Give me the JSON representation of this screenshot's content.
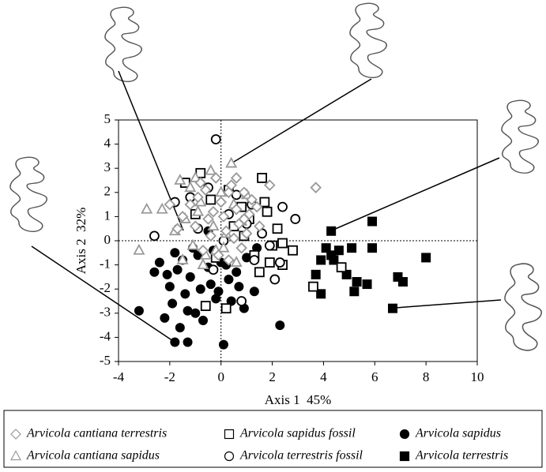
{
  "chart_data": {
    "type": "scatter",
    "x_label": "Axis 1  45%",
    "y_label": "Axis 2  32%",
    "xlim": [
      -4,
      10
    ],
    "xticks": [
      -4,
      -2,
      0,
      2,
      4,
      6,
      8,
      10
    ],
    "ylim": [
      -5,
      5
    ],
    "yticks": [
      -5,
      -4,
      -3,
      -2,
      -1,
      0,
      1,
      2,
      3,
      4,
      5
    ],
    "zero_lines": true,
    "grid": false,
    "series": [
      {
        "name": "Arvicola sapidus",
        "marker": "circle",
        "filled": true,
        "color": "#000000",
        "x": [
          -3.2,
          -1.8,
          -1.3,
          0.1,
          2.3,
          -2.2,
          -1.6,
          -1.0,
          -0.6,
          -0.2,
          0.4,
          0.9,
          1.3,
          -1.9,
          -1.4,
          -0.8,
          -0.4,
          0.3,
          0.7,
          -2.1,
          -1.7,
          -1.2,
          -0.5,
          0.0,
          0.6,
          -1.5,
          -0.9,
          -0.3,
          -2.4,
          -1.1,
          1.0,
          -0.7,
          0.2,
          -1.8,
          -2.0,
          -1.3,
          -0.1,
          -2.6,
          -0.5,
          1.4
        ],
        "y": [
          -2.9,
          -4.2,
          -4.2,
          -4.3,
          -3.5,
          -3.2,
          -3.6,
          -3.0,
          -2.7,
          -2.4,
          -2.5,
          -2.8,
          -2.1,
          -2.6,
          -2.2,
          -2.0,
          -1.8,
          -1.6,
          -1.9,
          -1.4,
          -1.2,
          -1.5,
          -1.1,
          -0.9,
          -1.3,
          -0.8,
          -0.6,
          -0.4,
          -0.9,
          -0.3,
          -0.7,
          -3.3,
          -1.0,
          -0.5,
          -1.9,
          -2.9,
          -2.1,
          -1.3,
          0.4,
          -0.3
        ]
      },
      {
        "name": "Arvicola terrestris",
        "marker": "square",
        "filled": true,
        "color": "#000000",
        "x": [
          4.3,
          5.9,
          5.9,
          8.0,
          4.1,
          4.3,
          4.4,
          3.9,
          5.1,
          3.7,
          4.9,
          5.3,
          5.7,
          5.2,
          6.9,
          7.1,
          3.9,
          6.7,
          4.6
        ],
        "y": [
          0.4,
          0.8,
          -0.3,
          -0.7,
          -0.3,
          -0.6,
          -0.8,
          -0.8,
          -0.3,
          -1.4,
          -1.4,
          -1.7,
          -1.8,
          -2.1,
          -1.5,
          -1.7,
          -2.2,
          -2.8,
          -0.4
        ]
      },
      {
        "name": "Arvicola sapidus fossil",
        "marker": "square",
        "filled": false,
        "color": "#000000",
        "x": [
          -0.8,
          -1.4,
          1.6,
          0.3,
          -0.4,
          0.8,
          1.7,
          1.8,
          2.2,
          2.4,
          2.8,
          2.4,
          1.5,
          3.6,
          4.7,
          0.5,
          -0.2,
          1.1,
          0.2,
          -0.6,
          1.3,
          2.0,
          0.9,
          -1.0,
          1.9
        ],
        "y": [
          2.8,
          2.4,
          2.6,
          2.1,
          1.7,
          1.4,
          1.6,
          1.2,
          0.5,
          -0.1,
          -0.4,
          -1.0,
          -1.3,
          -1.9,
          -1.1,
          0.6,
          -0.7,
          0.9,
          -2.8,
          -2.7,
          -0.6,
          -0.2,
          0.2,
          1.1,
          -0.9
        ]
      },
      {
        "name": "Arvicola terrestris fossil",
        "marker": "circle",
        "filled": false,
        "color": "#000000",
        "x": [
          -0.2,
          2.4,
          2.9,
          -2.6,
          1.3,
          2.1,
          0.8,
          -1.2,
          -0.5,
          0.3,
          1.0,
          1.6,
          -1.8,
          -0.9,
          0.6,
          1.9,
          -0.3,
          2.3,
          0.1,
          1.2
        ],
        "y": [
          4.2,
          1.4,
          0.9,
          0.2,
          -0.8,
          -1.6,
          -2.5,
          1.8,
          2.2,
          1.1,
          0.7,
          0.3,
          1.6,
          0.5,
          1.9,
          -0.2,
          -1.2,
          -0.9,
          0.0,
          1.5
        ]
      },
      {
        "name": "Arvicola cantiana sapidus",
        "marker": "triangle",
        "filled": false,
        "color": "#999999",
        "x": [
          -3.2,
          -2.9,
          0.4,
          -2.3,
          -1.6,
          -1.2,
          -0.8,
          -0.4,
          0.0,
          0.5,
          -1.4,
          -0.9,
          -0.3,
          0.2,
          0.8,
          -1.8,
          -1.1,
          -0.6,
          0.1,
          -1.5,
          -0.7,
          -0.2,
          0.6,
          -1.0,
          1.0
        ],
        "y": [
          -0.4,
          1.3,
          3.2,
          1.3,
          2.5,
          2.2,
          1.6,
          2.9,
          2.0,
          1.5,
          0.9,
          1.2,
          0.6,
          0.3,
          0.8,
          0.4,
          -0.2,
          -0.6,
          -0.3,
          -0.8,
          -1.0,
          -0.4,
          -0.9,
          2.6,
          1.9
        ]
      },
      {
        "name": "Arvicola cantiana terrestris",
        "marker": "diamond",
        "filled": false,
        "color": "#999999",
        "x": [
          -1.2,
          -0.9,
          -0.6,
          -0.3,
          0,
          0.3,
          0.6,
          0.9,
          1.2,
          -1,
          -0.5,
          0.2,
          0.7,
          1.1,
          -0.8,
          -0.2,
          0.4,
          0.9,
          1.4,
          -1.5,
          -0.4,
          0.1,
          0.5,
          1.0,
          3.7,
          1.9,
          -2.0,
          -1.7,
          0.8,
          -0.1,
          0.3,
          1.5,
          -0.7,
          0.6
        ],
        "y": [
          1.5,
          1.8,
          2.1,
          1.2,
          1.6,
          2.0,
          1.3,
          0.9,
          1.7,
          0.6,
          0.9,
          0.4,
          0.7,
          1.1,
          2.4,
          2.6,
          2.3,
          2.0,
          1.4,
          1.0,
          0.2,
          1.0,
          0.1,
          0.3,
          2.2,
          2.3,
          1.5,
          0.5,
          -0.3,
          -0.6,
          -0.8,
          0.6,
          -0.4,
          2.6
        ]
      }
    ]
  }
}
